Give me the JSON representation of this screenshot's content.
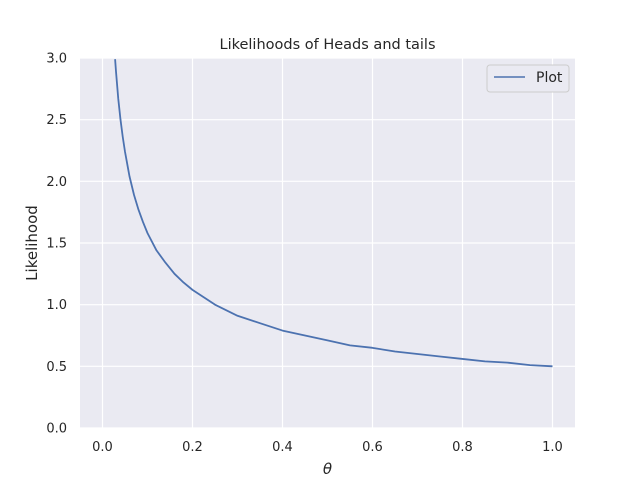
{
  "chart_data": {
    "type": "line",
    "title": "Likelihoods of Heads and tails",
    "xlabel": "θ",
    "ylabel": "Likelihood",
    "xlim": [
      -0.05,
      1.05
    ],
    "ylim": [
      0.0,
      3.0
    ],
    "xticks": [
      "0.0",
      "0.2",
      "0.4",
      "0.6",
      "0.8",
      "1.0"
    ],
    "yticks": [
      "0.0",
      "0.5",
      "1.0",
      "1.5",
      "2.0",
      "2.5",
      "3.0"
    ],
    "grid": true,
    "legend": {
      "position": "top-right"
    },
    "series": [
      {
        "name": "Plot",
        "color": "#4c72b0",
        "x": [
          0.028,
          0.03,
          0.035,
          0.04,
          0.045,
          0.05,
          0.06,
          0.07,
          0.08,
          0.09,
          0.1,
          0.12,
          0.14,
          0.16,
          0.18,
          0.2,
          0.25,
          0.3,
          0.35,
          0.4,
          0.45,
          0.5,
          0.55,
          0.6,
          0.65,
          0.7,
          0.75,
          0.8,
          0.85,
          0.9,
          0.95,
          1.0
        ],
        "y": [
          2.99,
          2.89,
          2.67,
          2.5,
          2.36,
          2.24,
          2.04,
          1.89,
          1.77,
          1.67,
          1.58,
          1.44,
          1.34,
          1.25,
          1.18,
          1.12,
          1.0,
          0.91,
          0.85,
          0.79,
          0.75,
          0.71,
          0.67,
          0.65,
          0.62,
          0.6,
          0.58,
          0.56,
          0.54,
          0.53,
          0.51,
          0.5
        ]
      }
    ]
  }
}
